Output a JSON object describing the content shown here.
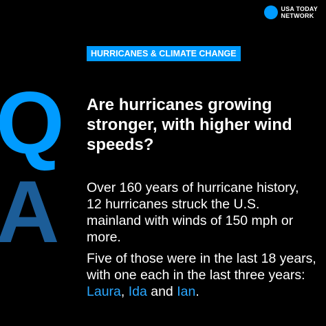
{
  "brand": {
    "line1": "USA TODAY",
    "line2": "NETWORK",
    "logo_color": "#009bff"
  },
  "tag": {
    "label": "HURRICANES & CLIMATE CHANGE",
    "color": "#009bff"
  },
  "big_letters": {
    "q": "Q",
    "a": "A",
    "q_color": "#009bff",
    "a_color": "#1c5d98"
  },
  "question": "Are hurricanes growing stronger, with higher wind speeds?",
  "answer": {
    "paragraph1": "Over 160 years of hurricane history, 12 hurricanes struck the U.S. mainland with winds of 150 mph or more.",
    "paragraph2_prefix": "Five of those were in the last 18 years, with one each in the last three years: ",
    "name1": "Laura",
    "sep1": ", ",
    "name2": "Ida",
    "sep2": " and ",
    "name3": "Ian",
    "suffix": ".",
    "highlight_color": "#2aa7ff"
  }
}
